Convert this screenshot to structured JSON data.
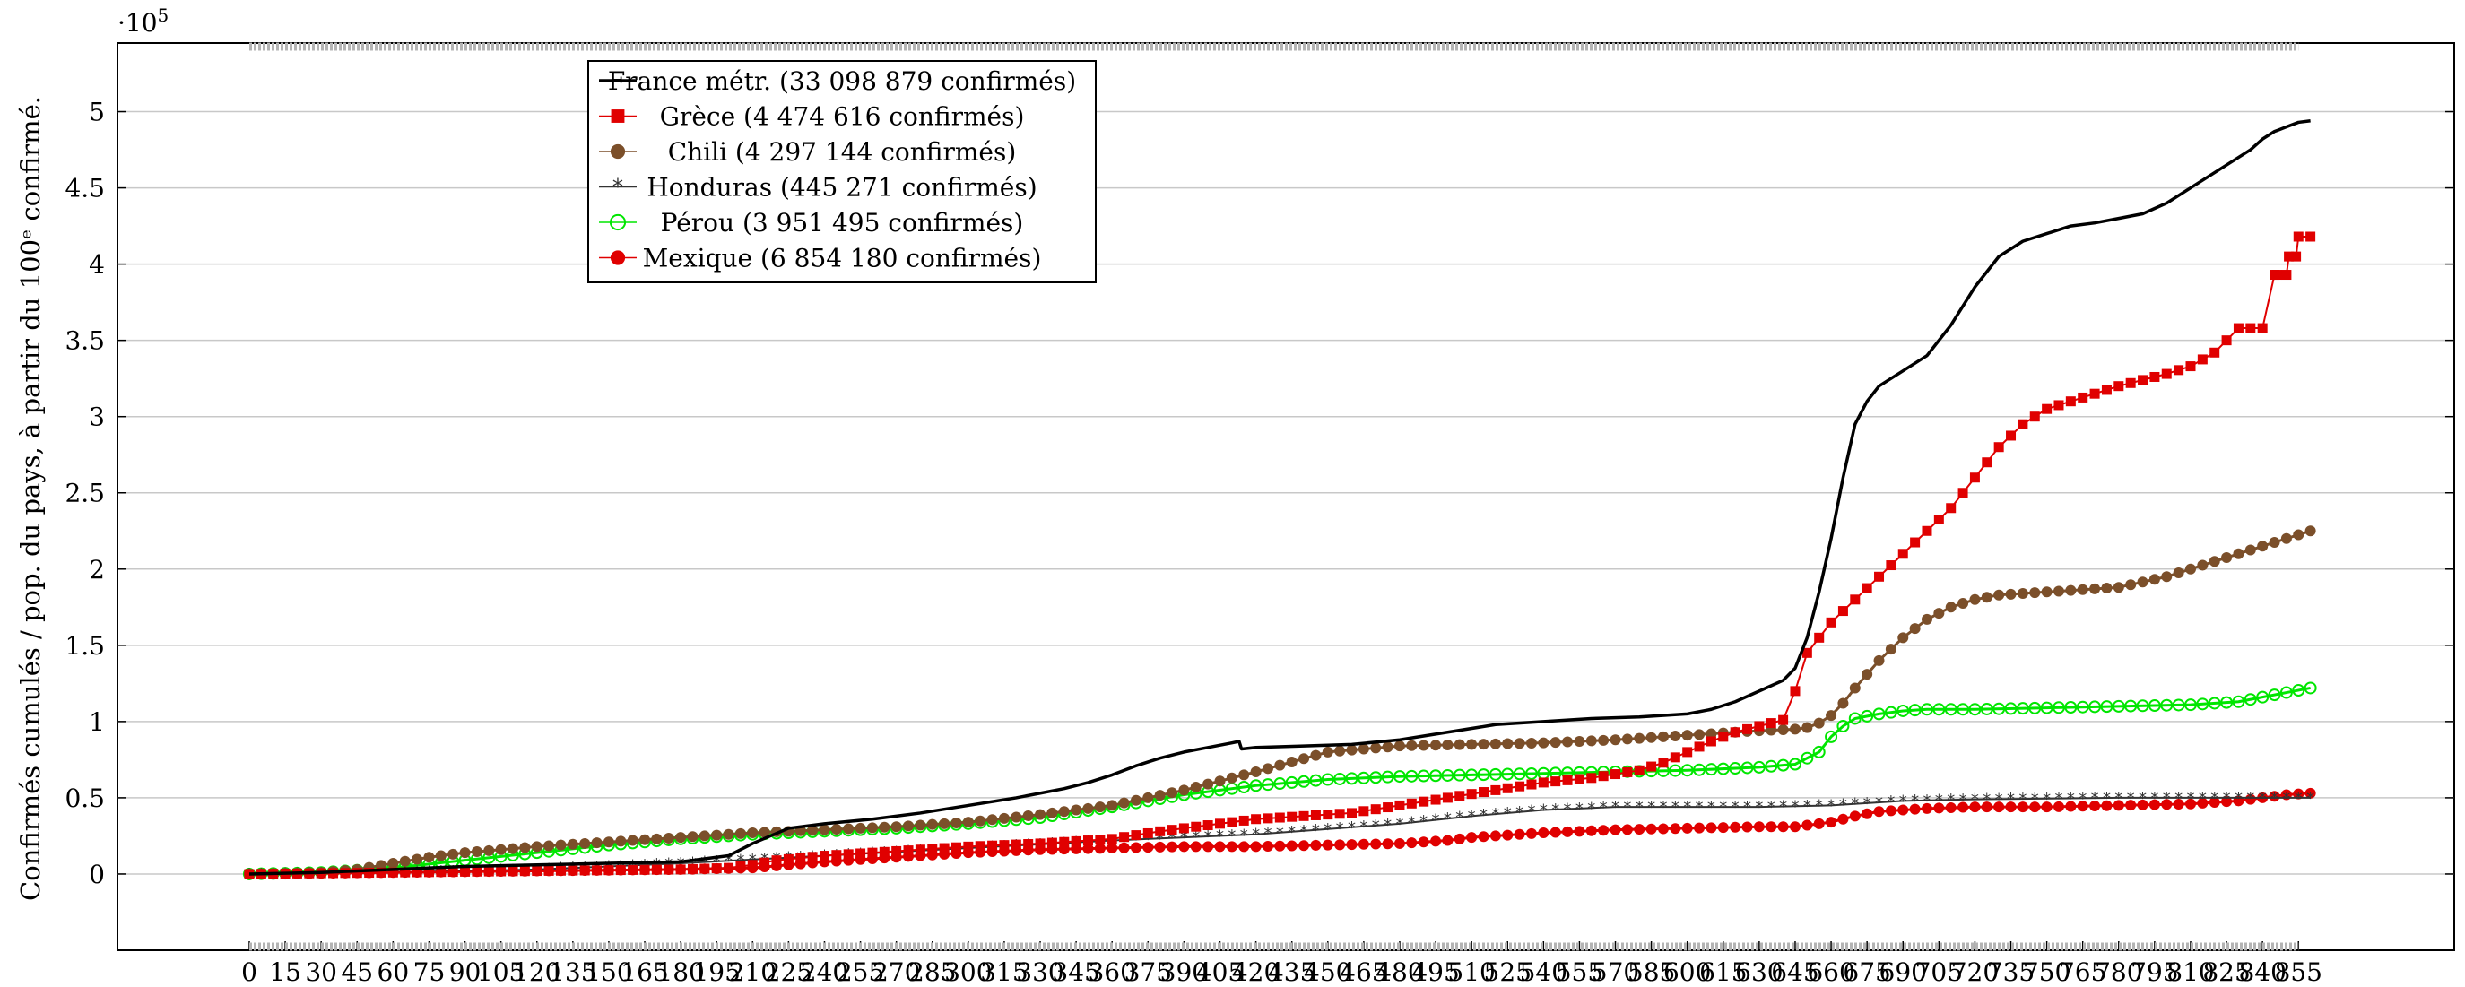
{
  "chart_data": {
    "type": "line",
    "title": "",
    "ylabel": "Confirmés cumulés / pop. du pays, à partir du 100ᵉ confirmé.",
    "xlabel": "",
    "y_multiplier_label": "·10",
    "y_multiplier_exp": "5",
    "xlim": [
      -55,
      920
    ],
    "ylim": [
      -0.5,
      5.45
    ],
    "y_scale": 100000,
    "grid": "horizontal",
    "legend_position": "top-left",
    "x_ticks": [
      0,
      15,
      30,
      45,
      60,
      75,
      90,
      105,
      120,
      135,
      150,
      165,
      180,
      195,
      210,
      225,
      240,
      255,
      270,
      285,
      300,
      315,
      330,
      345,
      360,
      375,
      390,
      405,
      420,
      435,
      450,
      465,
      480,
      495,
      510,
      525,
      540,
      555,
      570,
      585,
      600,
      615,
      630,
      645,
      660,
      675,
      690,
      705,
      720,
      735,
      750,
      765,
      780,
      795,
      810,
      825,
      840,
      855
    ],
    "y_ticks": [
      0,
      0.5,
      1,
      1.5,
      2,
      2.5,
      3,
      3.5,
      4,
      4.5,
      5
    ],
    "y_tick_labels": [
      "0",
      "0.5",
      "1",
      "1.5",
      "2",
      "2.5",
      "3",
      "3.5",
      "4",
      "4.5",
      "5"
    ],
    "series": [
      {
        "name": "France métr. (33 098 879 confirmés)",
        "color": "#000000",
        "marker": "none",
        "stroke_width": 3.5,
        "x": [
          0,
          30,
          60,
          90,
          120,
          150,
          180,
          200,
          210,
          225,
          240,
          260,
          280,
          300,
          320,
          340,
          350,
          360,
          370,
          380,
          390,
          400,
          410,
          413,
          414,
          420,
          440,
          460,
          480,
          500,
          520,
          540,
          560,
          580,
          600,
          610,
          620,
          630,
          640,
          645,
          650,
          655,
          660,
          665,
          670,
          675,
          680,
          685,
          690,
          700,
          710,
          720,
          730,
          740,
          750,
          760,
          770,
          780,
          790,
          800,
          810,
          820,
          825,
          830,
          835,
          840,
          845,
          850,
          855,
          860
        ],
        "y": [
          0,
          0.01,
          0.03,
          0.05,
          0.06,
          0.07,
          0.08,
          0.12,
          0.2,
          0.3,
          0.33,
          0.36,
          0.4,
          0.45,
          0.5,
          0.56,
          0.6,
          0.65,
          0.71,
          0.76,
          0.8,
          0.83,
          0.86,
          0.87,
          0.82,
          0.83,
          0.84,
          0.85,
          0.88,
          0.93,
          0.98,
          1.0,
          1.02,
          1.03,
          1.05,
          1.08,
          1.13,
          1.2,
          1.27,
          1.35,
          1.55,
          1.85,
          2.2,
          2.6,
          2.95,
          3.1,
          3.2,
          3.25,
          3.3,
          3.4,
          3.6,
          3.85,
          4.05,
          4.15,
          4.2,
          4.25,
          4.27,
          4.3,
          4.33,
          4.4,
          4.5,
          4.6,
          4.65,
          4.7,
          4.75,
          4.82,
          4.87,
          4.9,
          4.93,
          4.94
        ]
      },
      {
        "name": "Grèce (4 474 616 confirmés)",
        "color": "#e00000",
        "marker": "square",
        "stroke_width": 2,
        "x": [
          0,
          60,
          120,
          180,
          200,
          210,
          220,
          240,
          270,
          300,
          330,
          360,
          380,
          400,
          420,
          440,
          460,
          480,
          500,
          520,
          540,
          560,
          580,
          590,
          600,
          610,
          620,
          630,
          640,
          645,
          650,
          655,
          660,
          670,
          680,
          690,
          700,
          710,
          720,
          730,
          740,
          750,
          760,
          770,
          780,
          790,
          800,
          810,
          820,
          825,
          830,
          835,
          840,
          845,
          846,
          850,
          851,
          854,
          855,
          860
        ],
        "y": [
          0,
          0.01,
          0.02,
          0.03,
          0.04,
          0.06,
          0.09,
          0.12,
          0.15,
          0.18,
          0.2,
          0.23,
          0.28,
          0.32,
          0.36,
          0.38,
          0.4,
          0.45,
          0.5,
          0.55,
          0.6,
          0.63,
          0.68,
          0.73,
          0.8,
          0.87,
          0.93,
          0.97,
          1.01,
          1.2,
          1.45,
          1.55,
          1.65,
          1.8,
          1.95,
          2.1,
          2.25,
          2.4,
          2.6,
          2.8,
          2.95,
          3.05,
          3.1,
          3.15,
          3.2,
          3.24,
          3.28,
          3.33,
          3.42,
          3.5,
          3.58,
          3.58,
          3.58,
          3.93,
          3.93,
          3.93,
          4.05,
          4.05,
          4.18,
          4.18
        ]
      },
      {
        "name": "Chili (4 297 144 confirmés)",
        "color": "#7b4f2a",
        "marker": "circle",
        "stroke_width": 3,
        "x": [
          0,
          30,
          45,
          60,
          75,
          90,
          105,
          120,
          150,
          180,
          210,
          240,
          270,
          300,
          330,
          360,
          390,
          420,
          450,
          480,
          510,
          540,
          570,
          600,
          630,
          645,
          650,
          655,
          660,
          665,
          670,
          680,
          690,
          700,
          710,
          720,
          730,
          750,
          780,
          800,
          820,
          840,
          860
        ],
        "y": [
          0,
          0.01,
          0.03,
          0.07,
          0.11,
          0.14,
          0.16,
          0.18,
          0.21,
          0.24,
          0.27,
          0.29,
          0.31,
          0.34,
          0.39,
          0.45,
          0.55,
          0.67,
          0.8,
          0.84,
          0.85,
          0.86,
          0.88,
          0.91,
          0.94,
          0.95,
          0.96,
          0.99,
          1.04,
          1.12,
          1.22,
          1.4,
          1.55,
          1.67,
          1.75,
          1.8,
          1.83,
          1.85,
          1.88,
          1.95,
          2.05,
          2.15,
          2.25
        ]
      },
      {
        "name": "Honduras (445 271 confirmés)",
        "color": "#333333",
        "marker": "star",
        "stroke_width": 2,
        "x": [
          0,
          60,
          120,
          180,
          240,
          300,
          360,
          420,
          480,
          510,
          540,
          570,
          600,
          630,
          660,
          690,
          720,
          780,
          840,
          860
        ],
        "y": [
          0,
          0.01,
          0.03,
          0.07,
          0.12,
          0.17,
          0.22,
          0.26,
          0.33,
          0.38,
          0.42,
          0.44,
          0.44,
          0.44,
          0.45,
          0.48,
          0.49,
          0.5,
          0.5,
          0.5
        ]
      },
      {
        "name": "Pérou (3 951 495 confirmés)",
        "color": "#00e600",
        "marker": "hollow-circle",
        "stroke_width": 3,
        "x": [
          0,
          30,
          60,
          90,
          120,
          150,
          180,
          210,
          240,
          270,
          300,
          330,
          360,
          390,
          420,
          450,
          480,
          510,
          540,
          570,
          600,
          630,
          645,
          655,
          660,
          665,
          670,
          680,
          690,
          700,
          720,
          750,
          780,
          810,
          830,
          840,
          850,
          860
        ],
        "y": [
          0,
          0.01,
          0.04,
          0.09,
          0.14,
          0.19,
          0.23,
          0.26,
          0.28,
          0.3,
          0.33,
          0.37,
          0.44,
          0.52,
          0.58,
          0.62,
          0.64,
          0.65,
          0.66,
          0.67,
          0.68,
          0.7,
          0.72,
          0.8,
          0.9,
          0.97,
          1.02,
          1.05,
          1.07,
          1.08,
          1.08,
          1.09,
          1.1,
          1.11,
          1.13,
          1.16,
          1.19,
          1.22
        ]
      },
      {
        "name": "Mexique (6 854 180 confirmés)",
        "color": "#e00000",
        "marker": "dot",
        "stroke_width": 3,
        "x": [
          0,
          60,
          120,
          180,
          210,
          225,
          240,
          270,
          300,
          330,
          360,
          390,
          420,
          450,
          480,
          500,
          510,
          540,
          570,
          600,
          630,
          645,
          655,
          660,
          670,
          680,
          700,
          720,
          750,
          780,
          810,
          830,
          840,
          850,
          860
        ],
        "y": [
          0,
          0.01,
          0.02,
          0.03,
          0.04,
          0.06,
          0.08,
          0.11,
          0.14,
          0.16,
          0.17,
          0.18,
          0.18,
          0.19,
          0.2,
          0.22,
          0.24,
          0.27,
          0.29,
          0.3,
          0.31,
          0.31,
          0.33,
          0.34,
          0.38,
          0.41,
          0.43,
          0.44,
          0.44,
          0.45,
          0.46,
          0.48,
          0.5,
          0.52,
          0.53
        ]
      }
    ]
  }
}
